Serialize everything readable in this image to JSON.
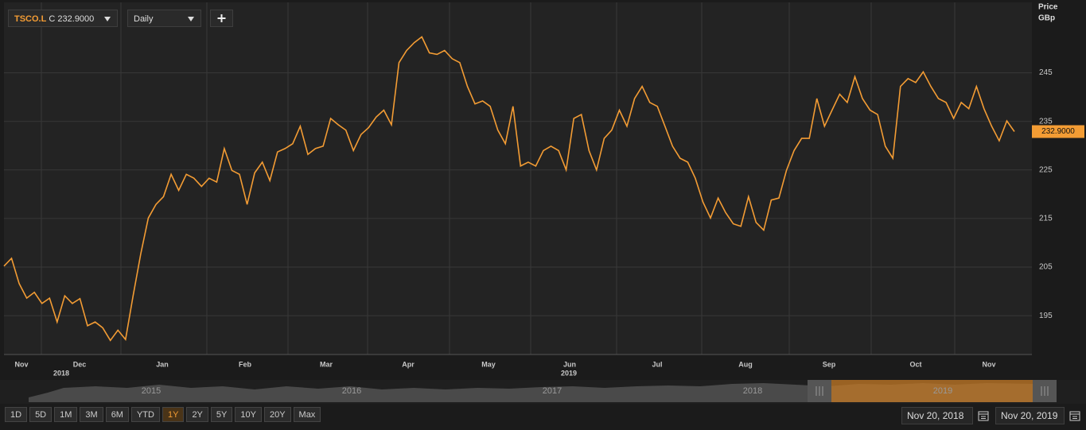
{
  "header": {
    "symbol": "TSCO.L",
    "close": "C 232.9000",
    "interval": "Daily"
  },
  "chart_data": {
    "type": "line",
    "y_axis_title": "Price",
    "y_axis_unit": "GBp",
    "series": [
      {
        "name": "TSCO.L",
        "color": "#f39c34",
        "values": [
          205.2,
          206.8,
          201.6,
          198.6,
          199.8,
          197.5,
          198.6,
          193.7,
          199.1,
          197.5,
          198.5,
          192.9,
          193.7,
          192.5,
          189.9,
          192.0,
          190.1,
          199.1,
          207.7,
          215.1,
          217.9,
          219.5,
          224.1,
          220.8,
          224.1,
          223.3,
          221.6,
          223.3,
          222.5,
          229.4,
          224.9,
          224.1,
          217.9,
          224.4,
          226.6,
          222.8,
          228.7,
          229.4,
          230.4,
          234.0,
          228.2,
          229.4,
          229.9,
          235.6,
          234.3,
          233.2,
          229.0,
          232.3,
          233.7,
          235.9,
          237.3,
          234.3,
          247.1,
          249.6,
          251.2,
          252.4,
          249.1,
          248.8,
          249.6,
          247.9,
          247.1,
          242.2,
          238.6,
          239.2,
          238.1,
          233.2,
          230.4,
          238.1,
          225.8,
          226.6,
          225.8,
          229.0,
          229.9,
          229.0,
          225.0,
          235.6,
          236.4,
          229.0,
          225.0,
          231.5,
          233.2,
          237.3,
          234.0,
          239.7,
          242.2,
          238.9,
          238.1,
          234.0,
          229.9,
          227.4,
          226.6,
          223.3,
          218.4,
          215.1,
          219.2,
          216.2,
          213.9,
          213.4,
          219.5,
          214.2,
          212.6,
          218.8,
          219.2,
          224.9,
          229.0,
          231.5,
          231.5,
          239.7,
          234.0,
          237.3,
          240.6,
          238.9,
          244.2,
          239.7,
          237.3,
          236.4,
          229.9,
          227.4,
          242.2,
          243.8,
          243.0,
          245.2,
          242.2,
          239.7,
          238.9,
          235.6,
          238.9,
          237.6,
          242.2,
          237.6,
          234.0,
          231.0,
          235.1,
          232.9
        ]
      }
    ],
    "last_label": "232.9000",
    "ylim": [
      187,
      259.5
    ],
    "yticks": [
      195,
      205,
      215,
      225,
      235,
      245
    ],
    "grid": true,
    "x_labels": [
      "Nov",
      "Dec",
      "Jan",
      "Feb",
      "Mar",
      "Apr",
      "May",
      "Jun",
      "Jul",
      "Aug",
      "Sep",
      "Oct",
      "Nov"
    ],
    "year_labels": [
      "2018",
      "2019"
    ]
  },
  "navigator": {
    "years": [
      "2015",
      "2016",
      "2017",
      "2018",
      "2019"
    ]
  },
  "ranges": [
    "1D",
    "5D",
    "1M",
    "3M",
    "6M",
    "YTD",
    "1Y",
    "2Y",
    "5Y",
    "10Y",
    "20Y",
    "Max"
  ],
  "active_range": "1Y",
  "dates": {
    "from": "Nov 20, 2018",
    "to": "Nov 20, 2019"
  }
}
